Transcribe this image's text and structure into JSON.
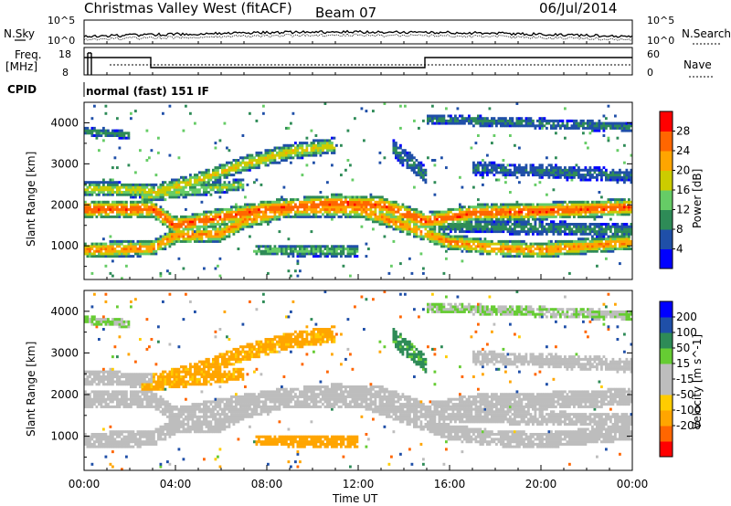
{
  "header": {
    "station": "Christmas Valley West (fitACF)",
    "beam": "Beam 07",
    "date": "06/Jul/2014"
  },
  "strip_panels": {
    "nsky_label": "N.Sky",
    "nsky_ticks": [
      "10^5",
      "10^0"
    ],
    "nsearch_label": "N.Search",
    "nsearch_ticks": [
      "10^5",
      "10^0"
    ],
    "freq_label_1": "Freq.",
    "freq_label_2": "[MHz]",
    "freq_ticks": [
      "18",
      "8"
    ],
    "nave_label": "Nave",
    "nave_ticks": [
      "60",
      "0"
    ],
    "cpid_label": "CPID",
    "cpid_value": "normal (fast) 151 IF"
  },
  "colors": {
    "power_scale": [
      "#0000ff",
      "#1f4fa8",
      "#2e8b57",
      "#66cc66",
      "#cccc00",
      "#ffa500",
      "#ff6600",
      "#ff0000"
    ],
    "velocity_scale": [
      "#ff0000",
      "#ff6600",
      "#ffa500",
      "#ffcc00",
      "#bdbdbd",
      "#bdbdbd",
      "#66cc33",
      "#2e8b57",
      "#1f4fa8",
      "#0000ff"
    ]
  },
  "chart_data": [
    {
      "type": "heatmap",
      "title": "Power",
      "xlabel": "Time UT",
      "ylabel": "Slant Range [km]",
      "xlim": [
        "00:00",
        "24:00"
      ],
      "ylim": [
        180,
        4500
      ],
      "yticks": [
        "1000",
        "2000",
        "3000",
        "4000"
      ],
      "colorbar_label": "Power [dB]",
      "colorbar_ticks": [
        "28",
        "24",
        "20",
        "16",
        "12",
        "8",
        "4"
      ],
      "colorbar_range": [
        0,
        32
      ]
    },
    {
      "type": "heatmap",
      "title": "Velocity",
      "xlabel": "Time UT",
      "ylabel": "Slant Range [km]",
      "xlim": [
        "00:00",
        "24:00"
      ],
      "ylim": [
        180,
        4500
      ],
      "yticks": [
        "1000",
        "2000",
        "3000",
        "4000"
      ],
      "xticks": [
        "00:00",
        "04:00",
        "08:00",
        "12:00",
        "16:00",
        "20:00",
        "00:00"
      ],
      "colorbar_label": "Velocity [m s^-1]",
      "colorbar_ticks": [
        "200",
        "100",
        "50",
        "15",
        "-15",
        "-50",
        "-100",
        "-200"
      ]
    }
  ]
}
